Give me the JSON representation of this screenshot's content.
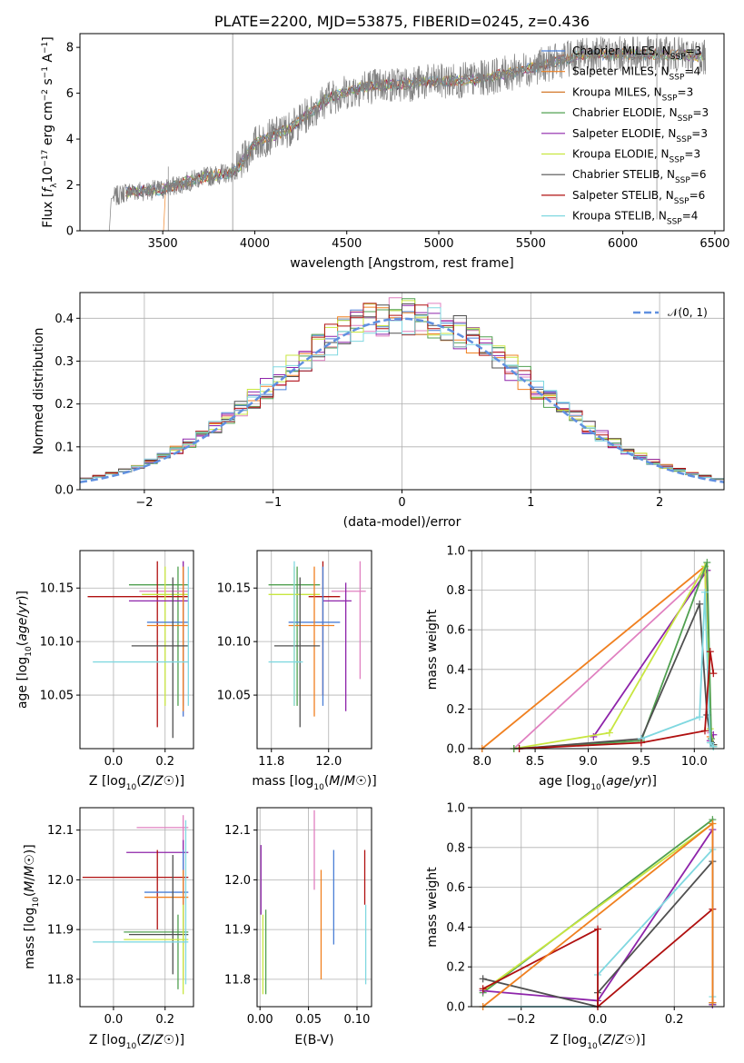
{
  "colors": {
    "chabrier_miles": "#4a7fd6",
    "salpeter_miles": "#f08020",
    "kroupa_miles": "#d4782a",
    "chabrier_elodie": "#50a050",
    "salpeter_elodie": "#8e24aa",
    "kroupa_elodie": "#c8e640",
    "chabrier_stelib": "#505050",
    "salpeter_stelib": "#b01010",
    "kroupa_stelib": "#80d8e0",
    "spectrum": "#808080",
    "normal": "#6090e0",
    "pink": "#e080c0"
  },
  "chart_data": [
    {
      "id": "spectrum",
      "type": "line",
      "title": "PLATE=2200, MJD=53875, FIBERID=0245, z=0.436",
      "xlabel": "wavelength [Angstrom, rest frame]",
      "ylabel": "Flux [f_λ 10^-17 erg cm^-2 s^-1 A^-1]",
      "xlim": [
        3050,
        6550
      ],
      "ylim": [
        0,
        8.6
      ],
      "xticks": [
        "3500",
        "4000",
        "4500",
        "5000",
        "5500",
        "6000",
        "6500"
      ],
      "yticks": [
        "0",
        "2",
        "4",
        "6",
        "8"
      ],
      "x_range": [
        3200,
        6450
      ],
      "continuum": [
        [
          3200,
          0
        ],
        [
          3210,
          0
        ],
        [
          3220,
          1.4
        ],
        [
          3300,
          1.7
        ],
        [
          3500,
          1.8
        ],
        [
          3700,
          2.3
        ],
        [
          3900,
          2.6
        ],
        [
          4000,
          3.8
        ],
        [
          4200,
          4.5
        ],
        [
          4400,
          5.8
        ],
        [
          4600,
          6.3
        ],
        [
          4800,
          6.4
        ],
        [
          5000,
          6.5
        ],
        [
          5200,
          6.6
        ],
        [
          5400,
          6.9
        ],
        [
          5600,
          7.3
        ],
        [
          5800,
          7.7
        ],
        [
          6000,
          7.7
        ],
        [
          6200,
          7.7
        ],
        [
          6450,
          7.6
        ]
      ],
      "legend": [
        {
          "text": "Chabrier MILES, N",
          "sub": "SSP",
          "eq": "=3",
          "color": "chabrier_miles"
        },
        {
          "text": "Salpeter MILES, N",
          "sub": "SSP",
          "eq": "=4",
          "color": "salpeter_miles"
        },
        {
          "text": "Kroupa MILES, N",
          "sub": "SSP",
          "eq": "=3",
          "color": "kroupa_miles"
        },
        {
          "text": "Chabrier ELODIE, N",
          "sub": "SSP",
          "eq": "=3",
          "color": "chabrier_elodie"
        },
        {
          "text": "Salpeter ELODIE, N",
          "sub": "SSP",
          "eq": "=3",
          "color": "salpeter_elodie"
        },
        {
          "text": "Kroupa ELODIE, N",
          "sub": "SSP",
          "eq": "=3",
          "color": "kroupa_elodie"
        },
        {
          "text": "Chabrier STELIB, N",
          "sub": "SSP",
          "eq": "=6",
          "color": "chabrier_stelib"
        },
        {
          "text": "Salpeter STELIB, N",
          "sub": "SSP",
          "eq": "=6",
          "color": "salpeter_stelib"
        },
        {
          "text": "Kroupa STELIB, N",
          "sub": "SSP",
          "eq": "=4",
          "color": "kroupa_stelib"
        }
      ]
    },
    {
      "id": "residuals",
      "type": "line",
      "xlabel": "(data-model)/error",
      "ylabel": "Normed distribution",
      "xlim": [
        -2.5,
        2.5
      ],
      "ylim": [
        0,
        0.46
      ],
      "xticks": [
        -2,
        -1,
        0,
        1,
        2
      ],
      "xtick_labels": [
        "−2",
        "−1",
        "0",
        "1",
        "2"
      ],
      "yticks": [
        0.0,
        0.1,
        0.2,
        0.3,
        0.4
      ],
      "ytick_labels": [
        "0.0",
        "0.1",
        "0.2",
        "0.3",
        "0.4"
      ],
      "normal_label": "𝒩(0, 1)",
      "hist_colors": [
        "chabrier_miles",
        "salpeter_miles",
        "pink",
        "chabrier_elodie",
        "salpeter_elodie",
        "kroupa_elodie",
        "chabrier_stelib",
        "salpeter_stelib",
        "kroupa_stelib"
      ]
    },
    {
      "id": "age_vs_Z",
      "type": "scatter",
      "xlabel": "Z [log10(Z/Z☉)]",
      "ylabel": "age [log10(age/yr)]",
      "xlim": [
        -0.13,
        0.31
      ],
      "ylim": [
        10.0,
        10.185
      ],
      "xticks": [
        "0.0",
        "0.2"
      ],
      "yticks": [
        "10.05",
        "10.10",
        "10.15"
      ],
      "points": [
        {
          "x": 0.25,
          "xlo": 0.06,
          "xhi": 0.29,
          "y": 10.153,
          "ylo": 10.04,
          "yhi": 10.17,
          "color": "chabrier_elodie"
        },
        {
          "x": 0.27,
          "xlo": 0.1,
          "xhi": 0.29,
          "y": 10.147,
          "ylo": 10.03,
          "yhi": 10.175,
          "color": "pink"
        },
        {
          "x": 0.17,
          "xlo": -0.1,
          "xhi": 0.29,
          "y": 10.142,
          "ylo": 10.02,
          "yhi": 10.175,
          "color": "salpeter_stelib"
        },
        {
          "x": 0.2,
          "xlo": 0.11,
          "xhi": 0.29,
          "y": 10.144,
          "ylo": 10.04,
          "yhi": 10.17,
          "color": "kroupa_elodie"
        },
        {
          "x": 0.27,
          "xlo": 0.06,
          "xhi": 0.29,
          "y": 10.138,
          "ylo": 10.04,
          "yhi": 10.175,
          "color": "salpeter_elodie"
        },
        {
          "x": 0.27,
          "xlo": 0.13,
          "xhi": 0.29,
          "y": 10.118,
          "ylo": 10.03,
          "yhi": 10.17,
          "color": "chabrier_miles"
        },
        {
          "x": 0.27,
          "xlo": 0.13,
          "xhi": 0.29,
          "y": 10.115,
          "ylo": 10.035,
          "yhi": 10.17,
          "color": "salpeter_miles"
        },
        {
          "x": 0.23,
          "xlo": 0.07,
          "xhi": 0.29,
          "y": 10.096,
          "ylo": 10.01,
          "yhi": 10.16,
          "color": "chabrier_stelib"
        },
        {
          "x": 0.29,
          "xlo": -0.08,
          "xhi": 0.29,
          "y": 10.081,
          "ylo": 10.04,
          "yhi": 10.17,
          "color": "kroupa_stelib"
        }
      ]
    },
    {
      "id": "age_vs_mass",
      "type": "scatter",
      "xlabel": "mass [log10(M/M☉)]",
      "ylabel": "",
      "xlim": [
        11.75,
        12.15
      ],
      "ylim": [
        10.0,
        10.185
      ],
      "xticks": [
        "11.8",
        "12.0"
      ],
      "yticks": [
        "10.05",
        "10.10",
        "10.15"
      ],
      "points": [
        {
          "x": 11.89,
          "xlo": 11.79,
          "xhi": 11.97,
          "y": 10.153,
          "ylo": 10.04,
          "yhi": 10.17,
          "color": "chabrier_elodie"
        },
        {
          "x": 12.11,
          "xlo": 12.01,
          "xhi": 12.13,
          "y": 10.147,
          "ylo": 10.065,
          "yhi": 10.175,
          "color": "pink"
        },
        {
          "x": 11.98,
          "xlo": 11.93,
          "xhi": 12.04,
          "y": 10.142,
          "ylo": 10.05,
          "yhi": 10.175,
          "color": "salpeter_stelib"
        },
        {
          "x": 11.88,
          "xlo": 11.79,
          "xhi": 11.97,
          "y": 10.144,
          "ylo": 10.04,
          "yhi": 10.17,
          "color": "kroupa_elodie"
        },
        {
          "x": 12.06,
          "xlo": 11.98,
          "xhi": 12.08,
          "y": 10.138,
          "ylo": 10.035,
          "yhi": 10.155,
          "color": "salpeter_elodie"
        },
        {
          "x": 11.98,
          "xlo": 11.86,
          "xhi": 12.04,
          "y": 10.118,
          "ylo": 10.04,
          "yhi": 10.17,
          "color": "chabrier_miles"
        },
        {
          "x": 11.95,
          "xlo": 11.86,
          "xhi": 12.02,
          "y": 10.115,
          "ylo": 10.03,
          "yhi": 10.17,
          "color": "salpeter_miles"
        },
        {
          "x": 11.9,
          "xlo": 11.81,
          "xhi": 11.97,
          "y": 10.096,
          "ylo": 10.02,
          "yhi": 10.16,
          "color": "chabrier_stelib"
        },
        {
          "x": 11.88,
          "xlo": 11.79,
          "xhi": 11.91,
          "y": 10.081,
          "ylo": 10.04,
          "yhi": 10.175,
          "color": "kroupa_stelib"
        }
      ]
    },
    {
      "id": "massweight_vs_age",
      "type": "line",
      "xlabel": "age [log10(age/yr)]",
      "ylabel": "mass weight",
      "xlim": [
        7.9,
        10.28
      ],
      "ylim": [
        0.0,
        1.0
      ],
      "xticks": [
        "8.0",
        "8.5",
        "9.0",
        "9.5",
        "10.0"
      ],
      "yticks": [
        "0.0",
        "0.2",
        "0.4",
        "0.6",
        "0.8",
        "1.0"
      ],
      "series": [
        {
          "color": "salpeter_miles",
          "x": [
            8.0,
            10.1,
            10.15,
            10.18
          ],
          "y": [
            0.0,
            0.92,
            0.06,
            0.02
          ]
        },
        {
          "color": "pink",
          "x": [
            8.3,
            10.12,
            10.15,
            10.18
          ],
          "y": [
            0.0,
            0.9,
            0.08,
            0.02
          ]
        },
        {
          "color": "salpeter_elodie",
          "x": [
            9.05,
            10.12,
            10.15,
            10.18
          ],
          "y": [
            0.06,
            0.9,
            0.04,
            0.07
          ]
        },
        {
          "color": "kroupa_elodie",
          "x": [
            8.3,
            9.2,
            10.1,
            10.15,
            10.18
          ],
          "y": [
            0.0,
            0.08,
            0.92,
            0.1,
            0.02
          ]
        },
        {
          "color": "chabrier_elodie",
          "x": [
            8.3,
            9.5,
            10.12,
            10.16,
            10.18
          ],
          "y": [
            0.0,
            0.04,
            0.94,
            0.05,
            0.01
          ]
        },
        {
          "color": "chabrier_stelib",
          "x": [
            8.35,
            9.5,
            10.05,
            10.12,
            10.16,
            10.18
          ],
          "y": [
            0.0,
            0.05,
            0.73,
            0.17,
            0.03,
            0.02
          ]
        },
        {
          "color": "kroupa_stelib",
          "x": [
            9.5,
            10.05,
            10.1,
            10.15,
            10.18
          ],
          "y": [
            0.05,
            0.16,
            0.79,
            0.03,
            0.01
          ]
        },
        {
          "color": "salpeter_stelib",
          "x": [
            8.35,
            9.5,
            10.1,
            10.15,
            10.18
          ],
          "y": [
            0.0,
            0.03,
            0.09,
            0.49,
            0.38
          ]
        }
      ]
    },
    {
      "id": "mass_vs_Z",
      "type": "scatter",
      "xlabel": "Z [log10(Z/Z☉)]",
      "ylabel": "mass [log10(M/M☉)]",
      "xlim": [
        -0.13,
        0.31
      ],
      "ylim": [
        11.745,
        12.145
      ],
      "xticks": [
        "0.0",
        "0.2"
      ],
      "yticks": [
        "11.8",
        "11.9",
        "12.0",
        "12.1"
      ],
      "points": [
        {
          "x": 0.27,
          "xlo": 0.09,
          "xhi": 0.29,
          "y": 12.105,
          "ylo": 11.95,
          "yhi": 12.13,
          "color": "pink"
        },
        {
          "x": 0.27,
          "xlo": 0.05,
          "xhi": 0.29,
          "y": 12.055,
          "ylo": 11.9,
          "yhi": 12.08,
          "color": "salpeter_elodie"
        },
        {
          "x": 0.17,
          "xlo": -0.12,
          "xhi": 0.29,
          "y": 12.005,
          "ylo": 11.9,
          "yhi": 12.06,
          "color": "salpeter_stelib"
        },
        {
          "x": 0.27,
          "xlo": 0.12,
          "xhi": 0.29,
          "y": 11.975,
          "ylo": 11.87,
          "yhi": 12.06,
          "color": "chabrier_miles"
        },
        {
          "x": 0.27,
          "xlo": 0.12,
          "xhi": 0.29,
          "y": 11.965,
          "ylo": 11.8,
          "yhi": 12.02,
          "color": "salpeter_miles"
        },
        {
          "x": 0.25,
          "xlo": 0.04,
          "xhi": 0.29,
          "y": 11.895,
          "ylo": 11.78,
          "yhi": 11.93,
          "color": "chabrier_elodie"
        },
        {
          "x": 0.23,
          "xlo": 0.06,
          "xhi": 0.29,
          "y": 11.89,
          "ylo": 11.81,
          "yhi": 12.05,
          "color": "chabrier_stelib"
        },
        {
          "x": 0.27,
          "xlo": 0.04,
          "xhi": 0.29,
          "y": 11.88,
          "ylo": 11.77,
          "yhi": 11.95,
          "color": "kroupa_elodie"
        },
        {
          "x": 0.28,
          "xlo": -0.08,
          "xhi": 0.29,
          "y": 11.875,
          "ylo": 11.79,
          "yhi": 12.12,
          "color": "kroupa_stelib"
        }
      ]
    },
    {
      "id": "mass_vs_ebv",
      "type": "scatter",
      "xlabel": "E(B-V)",
      "ylabel": "",
      "xlim": [
        -0.003,
        0.115
      ],
      "ylim": [
        11.745,
        12.145
      ],
      "xticks": [
        "0.00",
        "0.05",
        "0.10"
      ],
      "yticks": [
        "11.8",
        "11.9",
        "12.0",
        "12.1"
      ],
      "points": [
        {
          "x": 0.001,
          "xlo": 0.001,
          "xhi": 0.001,
          "y": 12.0,
          "ylo": 11.93,
          "yhi": 12.07,
          "color": "salpeter_elodie"
        },
        {
          "x": 0.003,
          "xlo": 0.003,
          "xhi": 0.003,
          "y": 11.85,
          "ylo": 11.77,
          "yhi": 11.93,
          "color": "kroupa_elodie"
        },
        {
          "x": 0.006,
          "xlo": 0.006,
          "xhi": 0.006,
          "y": 11.86,
          "ylo": 11.77,
          "yhi": 11.94,
          "color": "chabrier_elodie"
        },
        {
          "x": 0.056,
          "xlo": 0.056,
          "xhi": 0.056,
          "y": 12.06,
          "ylo": 11.98,
          "yhi": 12.14,
          "color": "pink"
        },
        {
          "x": 0.063,
          "xlo": 0.063,
          "xhi": 0.063,
          "y": 11.91,
          "ylo": 11.8,
          "yhi": 12.02,
          "color": "salpeter_miles"
        },
        {
          "x": 0.076,
          "xlo": 0.076,
          "xhi": 0.076,
          "y": 11.96,
          "ylo": 11.87,
          "yhi": 12.06,
          "color": "chabrier_miles"
        },
        {
          "x": 0.108,
          "xlo": 0.108,
          "xhi": 0.108,
          "y": 12.0,
          "ylo": 11.95,
          "yhi": 12.06,
          "color": "salpeter_stelib"
        },
        {
          "x": 0.109,
          "xlo": 0.109,
          "xhi": 0.109,
          "y": 11.86,
          "ylo": 11.79,
          "yhi": 11.95,
          "color": "kroupa_stelib"
        }
      ]
    },
    {
      "id": "massweight_vs_Z",
      "type": "line",
      "xlabel": "Z [log10(Z/Z☉)]",
      "ylabel": "mass weight",
      "xlim": [
        -0.33,
        0.33
      ],
      "ylim": [
        0.0,
        1.0
      ],
      "xticks": [
        -0.2,
        0.0,
        0.2
      ],
      "xtick_labels": [
        "−0.2",
        "0.0",
        "0.2"
      ],
      "yticks": [
        "0.0",
        "0.2",
        "0.4",
        "0.6",
        "0.8",
        "1.0"
      ],
      "series": [
        {
          "color": "chabrier_elodie",
          "x": [
            -0.3,
            0.3,
            0.3
          ],
          "y": [
            0.07,
            0.94,
            0.01
          ]
        },
        {
          "color": "kroupa_elodie",
          "x": [
            -0.3,
            0.3,
            0.3
          ],
          "y": [
            0.08,
            0.92,
            0.02
          ]
        },
        {
          "color": "salpeter_elodie",
          "x": [
            -0.3,
            0.0,
            0.3,
            0.3
          ],
          "y": [
            0.08,
            0.03,
            0.89,
            0.01
          ]
        },
        {
          "color": "kroupa_stelib",
          "x": [
            -0.3,
            0.0,
            0.0,
            0.3,
            0.3
          ],
          "y": [
            0.0,
            0.0,
            0.16,
            0.79,
            0.05
          ]
        },
        {
          "color": "chabrier_stelib",
          "x": [
            -0.3,
            0.0,
            0.0,
            0.3,
            0.3
          ],
          "y": [
            0.14,
            0.0,
            0.07,
            0.73,
            0.02
          ]
        },
        {
          "color": "salpeter_stelib",
          "x": [
            -0.3,
            0.0,
            0.0,
            0.3
          ],
          "y": [
            0.09,
            0.39,
            0.0,
            0.49
          ]
        },
        {
          "color": "salpeter_miles",
          "x": [
            -0.3,
            0.3,
            0.3
          ],
          "y": [
            0.0,
            0.92,
            0.02
          ]
        }
      ]
    }
  ]
}
